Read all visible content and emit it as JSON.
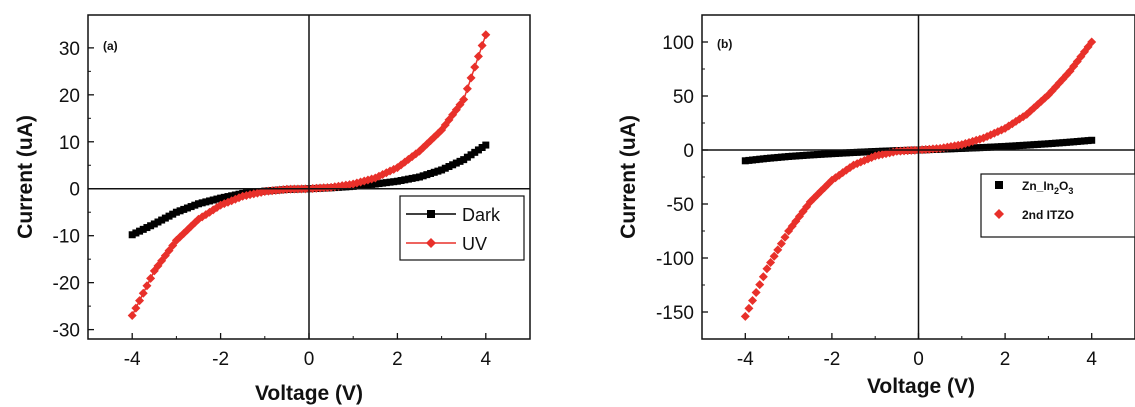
{
  "chart_data": [
    {
      "type": "line",
      "panel_label": "(a)",
      "xlabel": "Voltage (V)",
      "ylabel": "Current (uA)",
      "xlim": [
        -5,
        5
      ],
      "ylim": [
        -32,
        37
      ],
      "xticks": [
        -4,
        -2,
        0,
        2,
        4
      ],
      "yticks": [
        -30,
        -20,
        -10,
        0,
        10,
        20,
        30
      ],
      "grid": false,
      "legend_position": "right, middle",
      "series": [
        {
          "name": "Dark",
          "color": "#000000",
          "marker": "square",
          "x": [
            -4.0,
            -3.5,
            -3.0,
            -2.5,
            -2.0,
            -1.5,
            -1.0,
            -0.5,
            0.0,
            0.5,
            1.0,
            1.5,
            2.0,
            2.5,
            3.0,
            3.5,
            4.0
          ],
          "y": [
            -9.8,
            -7.5,
            -5.0,
            -3.2,
            -2.0,
            -1.0,
            -0.5,
            -0.15,
            0.0,
            0.2,
            0.5,
            1.0,
            1.6,
            2.5,
            4.0,
            6.2,
            9.3
          ]
        },
        {
          "name": "UV",
          "color": "#e8302a",
          "marker": "diamond",
          "x": [
            -4.0,
            -3.5,
            -3.0,
            -2.5,
            -2.0,
            -1.5,
            -1.0,
            -0.5,
            0.0,
            0.5,
            1.0,
            1.5,
            2.0,
            2.5,
            3.0,
            3.5,
            4.0
          ],
          "y": [
            -27.0,
            -17.5,
            -11.0,
            -6.5,
            -3.5,
            -1.6,
            -0.6,
            -0.1,
            0.0,
            0.3,
            1.0,
            2.3,
            4.5,
            8.0,
            12.5,
            19.0,
            32.8
          ]
        }
      ]
    },
    {
      "type": "scatter",
      "panel_label": "(b)",
      "xlabel": "Voltage (V)",
      "ylabel": "Current (uA)",
      "xlim": [
        -5,
        5
      ],
      "ylim": [
        -175,
        125
      ],
      "xticks": [
        -4,
        -2,
        0,
        2,
        4
      ],
      "yticks": [
        -150,
        -100,
        -50,
        0,
        50,
        100
      ],
      "grid": false,
      "legend_position": "right, middle",
      "series": [
        {
          "name": "Zn_In2O3",
          "color": "#000000",
          "marker": "square",
          "x": [
            -4.0,
            -3.5,
            -3.0,
            -2.5,
            -2.0,
            -1.5,
            -1.0,
            -0.5,
            0.0,
            0.5,
            1.0,
            1.5,
            2.0,
            2.5,
            3.0,
            3.5,
            4.0
          ],
          "y": [
            -10.0,
            -7.8,
            -6.0,
            -4.6,
            -3.4,
            -2.3,
            -1.4,
            -0.6,
            0.0,
            0.7,
            1.5,
            2.3,
            3.3,
            4.5,
            5.8,
            7.3,
            9.0
          ]
        },
        {
          "name": "2nd ITZO",
          "color": "#e8302a",
          "marker": "diamond",
          "x": [
            -4.0,
            -3.5,
            -3.0,
            -2.5,
            -2.0,
            -1.5,
            -1.0,
            -0.5,
            0.0,
            0.5,
            1.0,
            1.5,
            2.0,
            2.5,
            3.0,
            3.5,
            4.0
          ],
          "y": [
            -154.0,
            -110.0,
            -75.0,
            -48.0,
            -28.0,
            -14.0,
            -5.5,
            -1.2,
            0.0,
            1.5,
            5.0,
            11.0,
            20.0,
            33.0,
            51.0,
            73.0,
            100.0
          ]
        }
      ],
      "legend_b_labels": {
        "s1_base": "Zn_In",
        "s1_sub1": "2",
        "s1_mid": "O",
        "s1_sub2": "3",
        "s2": "2nd ITZO"
      }
    }
  ]
}
